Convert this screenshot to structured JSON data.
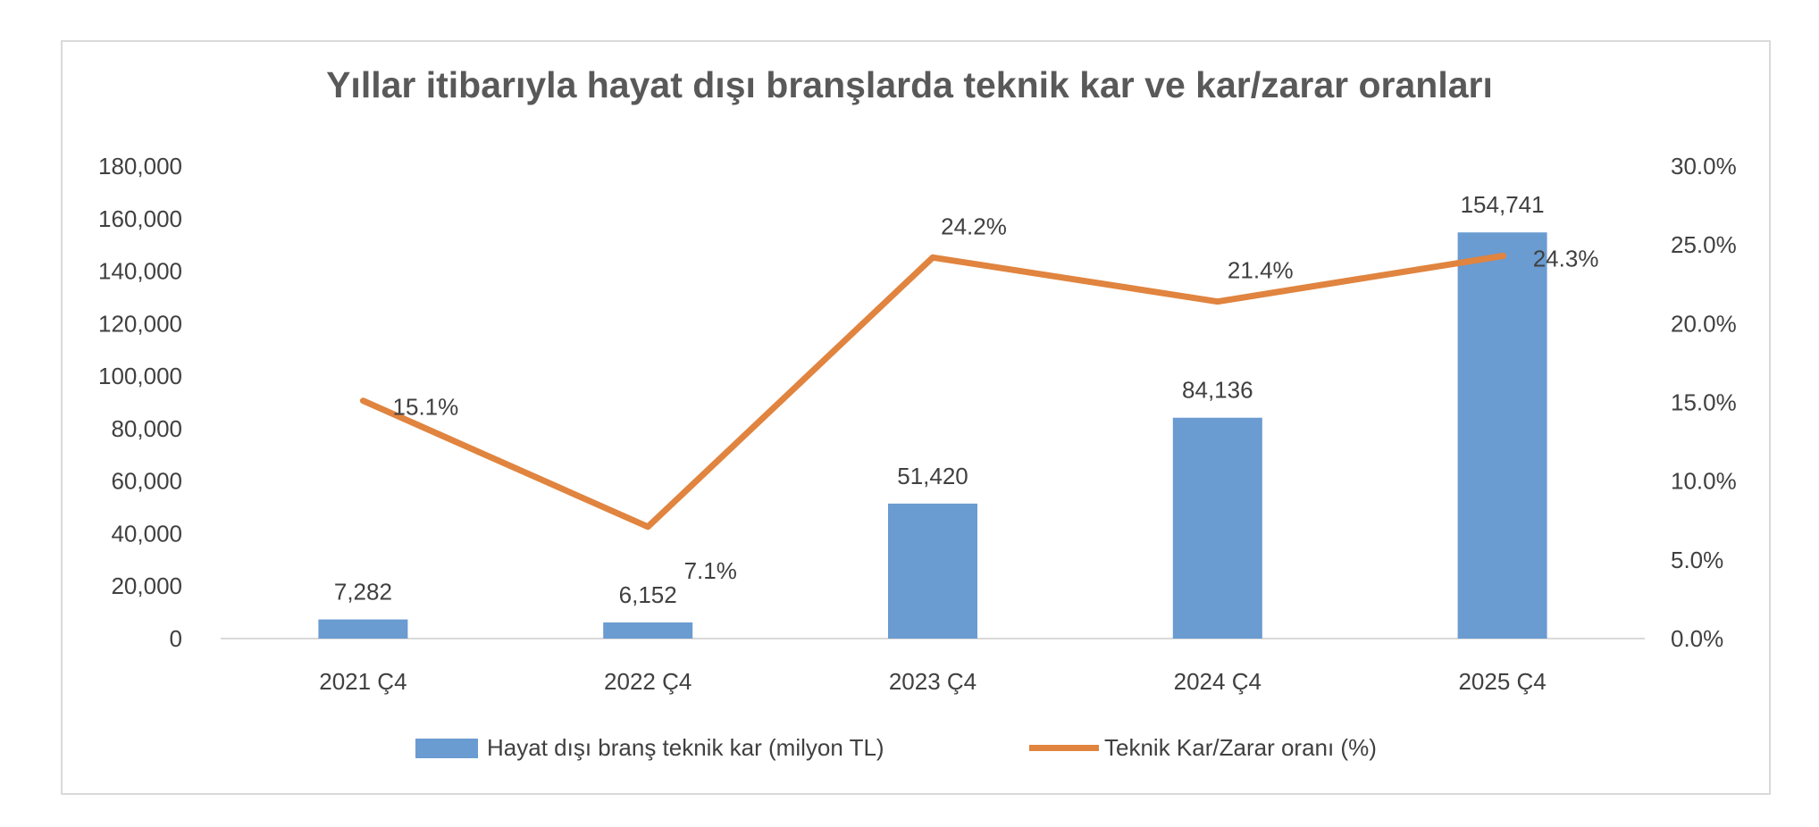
{
  "chart_data": {
    "type": "bar+line",
    "title": "Yıllar itibarıyla hayat dışı branşlarda teknik kar ve kar/zarar oranları",
    "categories": [
      "2021 Ç4",
      "2022 Ç4",
      "2023 Ç4",
      "2024 Ç4",
      "2025 Ç4"
    ],
    "series": [
      {
        "name": "Hayat dışı branş teknik kar (milyon TL)",
        "type": "bar",
        "axis": "left",
        "color": "#6a9bd1",
        "values": [
          7282,
          6152,
          51420,
          84136,
          154741
        ],
        "labels": [
          "7,282",
          "6,152",
          "51,420",
          "84,136",
          "154,741"
        ]
      },
      {
        "name": "Teknik Kar/Zarar oranı (%)",
        "type": "line",
        "axis": "right",
        "color": "#e0843f",
        "values": [
          15.1,
          7.1,
          24.2,
          21.4,
          24.3
        ],
        "labels": [
          "15.1%",
          "7.1%",
          "24.2%",
          "21.4%",
          "24.3%"
        ]
      }
    ],
    "y_left": {
      "range": [
        0,
        180000
      ],
      "ticks": [
        "0",
        "20,000",
        "40,000",
        "60,000",
        "80,000",
        "100,000",
        "120,000",
        "140,000",
        "160,000",
        "180,000"
      ]
    },
    "y_right": {
      "range": [
        0,
        30
      ],
      "ticks": [
        "0.0%",
        "5.0%",
        "10.0%",
        "15.0%",
        "20.0%",
        "25.0%",
        "30.0%"
      ]
    },
    "grid": false,
    "legend": "bottom"
  }
}
